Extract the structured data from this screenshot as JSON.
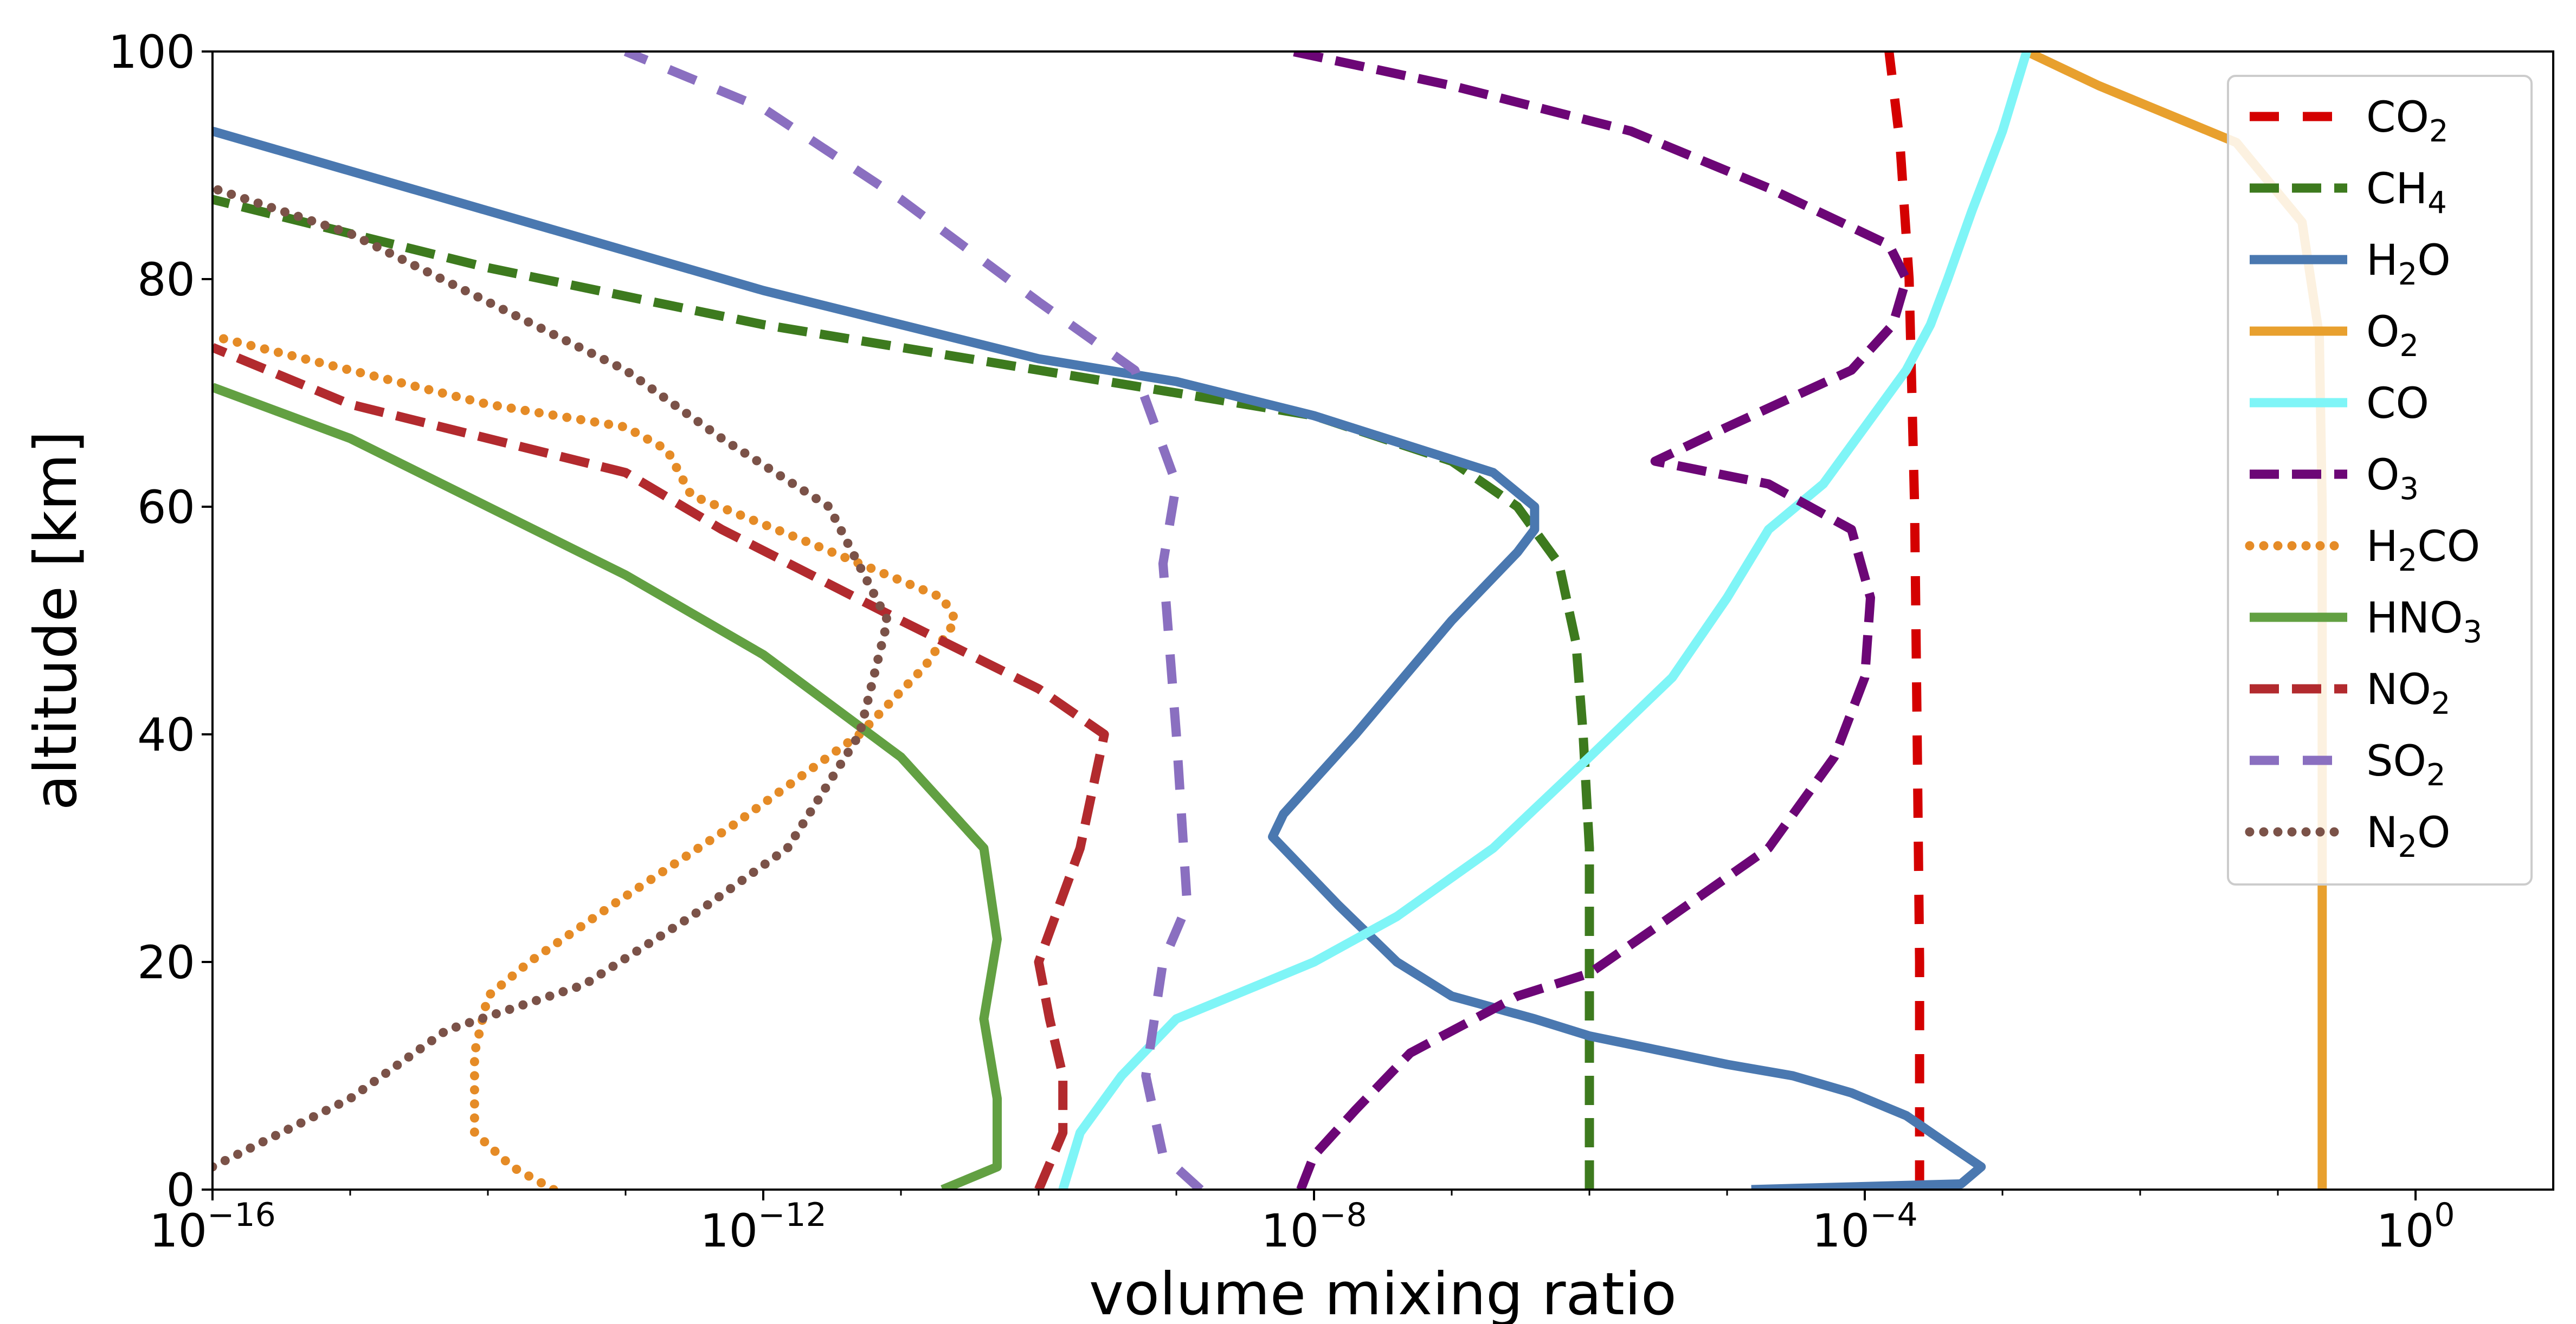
{
  "chart_data": {
    "type": "line",
    "xlabel": "volume mixing ratio",
    "ylabel": "altitude [km]",
    "xscale": "log",
    "xlim": [
      1e-16,
      10
    ],
    "ylim": [
      0,
      100
    ],
    "grid": false,
    "legend_position": "top-right",
    "x_ticks": [
      {
        "value": 1e-16,
        "base": "10",
        "exp": "−16"
      },
      {
        "value": 1e-12,
        "base": "10",
        "exp": "−12"
      },
      {
        "value": 1e-08,
        "base": "10",
        "exp": "−8"
      },
      {
        "value": 0.0001,
        "base": "10",
        "exp": "−4"
      },
      {
        "value": 1,
        "base": "10",
        "exp": "0"
      }
    ],
    "y_ticks": [
      "0",
      "20",
      "40",
      "60",
      "80",
      "100"
    ],
    "series": [
      {
        "name": "CO2",
        "label_main": "CO",
        "label_sub": "2",
        "color": "#d40000",
        "style": "dashdot",
        "points": [
          [
            0.00025,
            0
          ],
          [
            0.00025,
            20
          ],
          [
            0.00024,
            40
          ],
          [
            0.00023,
            60
          ],
          [
            0.00021,
            80
          ],
          [
            0.00018,
            92
          ],
          [
            0.00015,
            100
          ]
        ]
      },
      {
        "name": "CH4",
        "label_main": "CH",
        "label_sub": "4",
        "color": "#3d7a1e",
        "style": "dashed",
        "points": [
          [
            1e-06,
            0
          ],
          [
            1e-06,
            10
          ],
          [
            1e-06,
            20
          ],
          [
            1e-06,
            30
          ],
          [
            9e-07,
            40
          ],
          [
            8e-07,
            48
          ],
          [
            6e-07,
            55
          ],
          [
            3e-07,
            60
          ],
          [
            1e-07,
            64
          ],
          [
            1e-08,
            68
          ],
          [
            1e-09,
            70
          ],
          [
            1e-10,
            72
          ],
          [
            1e-12,
            76
          ],
          [
            1e-14,
            81
          ],
          [
            1e-15,
            84
          ],
          [
            1e-16,
            87
          ]
        ]
      },
      {
        "name": "H2O",
        "label_main": "H",
        "label_sub": "2",
        "label_tail": "O",
        "color": "#4a78b0",
        "style": "solid",
        "points": [
          [
            1.5e-05,
            0
          ],
          [
            0.0005,
            0.5
          ],
          [
            0.0007,
            2
          ],
          [
            0.0004,
            4
          ],
          [
            0.0002,
            6.5
          ],
          [
            8e-05,
            8.5
          ],
          [
            3e-05,
            10
          ],
          [
            1e-05,
            11
          ],
          [
            4e-06,
            12
          ],
          [
            1e-06,
            13.5
          ],
          [
            4e-07,
            15
          ],
          [
            1e-07,
            17
          ],
          [
            4e-08,
            20
          ],
          [
            1.5e-08,
            25
          ],
          [
            5e-09,
            31
          ],
          [
            6e-09,
            33
          ],
          [
            2e-08,
            40
          ],
          [
            1e-07,
            50
          ],
          [
            3e-07,
            56
          ],
          [
            4e-07,
            58
          ],
          [
            4e-07,
            60
          ],
          [
            2e-07,
            63
          ],
          [
            1e-08,
            68
          ],
          [
            1e-09,
            71
          ],
          [
            1e-10,
            73
          ],
          [
            1e-11,
            76
          ],
          [
            1e-12,
            79
          ],
          [
            1e-14,
            86
          ],
          [
            1e-16,
            93
          ]
        ]
      },
      {
        "name": "O2",
        "label_main": "O",
        "label_sub": "2",
        "color": "#e8a02e",
        "style": "solid",
        "points": [
          [
            0.21,
            0
          ],
          [
            0.21,
            40
          ],
          [
            0.21,
            60
          ],
          [
            0.2,
            75
          ],
          [
            0.15,
            85
          ],
          [
            0.05,
            92
          ],
          [
            0.005,
            97
          ],
          [
            0.0015,
            100
          ]
        ]
      },
      {
        "name": "CO",
        "label_main": "CO",
        "label_sub": "",
        "color": "#7ff5f7",
        "style": "solid",
        "points": [
          [
            1.5e-10,
            0
          ],
          [
            2e-10,
            5
          ],
          [
            4e-10,
            10
          ],
          [
            1e-09,
            15
          ],
          [
            4e-09,
            18
          ],
          [
            1e-08,
            20
          ],
          [
            4e-08,
            24
          ],
          [
            2e-07,
            30
          ],
          [
            1e-06,
            38
          ],
          [
            4e-06,
            45
          ],
          [
            1e-05,
            52
          ],
          [
            2e-05,
            58
          ],
          [
            5e-05,
            62
          ],
          [
            0.0001,
            67
          ],
          [
            0.0002,
            72
          ],
          [
            0.0003,
            76
          ],
          [
            0.0004,
            80
          ],
          [
            0.0006,
            86
          ],
          [
            0.001,
            93
          ],
          [
            0.0015,
            100
          ]
        ]
      },
      {
        "name": "O3",
        "label_main": "O",
        "label_sub": "3",
        "color": "#6c0676",
        "style": "dashed",
        "points": [
          [
            8e-09,
            0
          ],
          [
            1e-08,
            3
          ],
          [
            2e-08,
            7
          ],
          [
            5e-08,
            12
          ],
          [
            3e-07,
            17
          ],
          [
            1e-06,
            19
          ],
          [
            3e-06,
            23
          ],
          [
            2e-05,
            30
          ],
          [
            6e-05,
            38
          ],
          [
            0.0001,
            45
          ],
          [
            0.00011,
            52
          ],
          [
            8e-05,
            58
          ],
          [
            2e-05,
            62
          ],
          [
            3e-06,
            64
          ],
          [
            1e-05,
            67
          ],
          [
            8e-05,
            72
          ],
          [
            0.00016,
            76
          ],
          [
            0.0002,
            80
          ],
          [
            0.00015,
            83
          ],
          [
            2e-05,
            88
          ],
          [
            2e-06,
            93
          ],
          [
            1e-07,
            97
          ],
          [
            7e-09,
            100
          ]
        ]
      },
      {
        "name": "H2CO",
        "label_main": "H",
        "label_sub": "2",
        "label_tail": "CO",
        "color": "#e58b26",
        "style": "dotted",
        "points": [
          [
            3e-14,
            0
          ],
          [
            1.5e-14,
            2
          ],
          [
            8e-15,
            5
          ],
          [
            8e-15,
            12
          ],
          [
            1e-14,
            17
          ],
          [
            2e-14,
            20
          ],
          [
            8e-14,
            25
          ],
          [
            6e-13,
            32
          ],
          [
            5e-12,
            40
          ],
          [
            1.5e-11,
            46
          ],
          [
            2.5e-11,
            50
          ],
          [
            2e-11,
            52
          ],
          [
            2e-12,
            57
          ],
          [
            3e-13,
            61
          ],
          [
            2e-13,
            65
          ],
          [
            1e-13,
            67
          ],
          [
            1e-14,
            69
          ],
          [
            1e-15,
            72
          ],
          [
            1e-16,
            75
          ]
        ]
      },
      {
        "name": "HNO3",
        "label_main": "HNO",
        "label_sub": "3",
        "color": "#62a042",
        "style": "solid",
        "points": [
          [
            2e-11,
            0
          ],
          [
            5e-11,
            2
          ],
          [
            5e-11,
            8
          ],
          [
            4e-11,
            15
          ],
          [
            5e-11,
            22
          ],
          [
            4e-11,
            30
          ],
          [
            1e-11,
            38
          ],
          [
            1e-12,
            47
          ],
          [
            1e-13,
            54
          ],
          [
            1e-14,
            60
          ],
          [
            1e-15,
            66
          ],
          [
            1e-16,
            70.5
          ]
        ]
      },
      {
        "name": "NO2",
        "label_main": "NO",
        "label_sub": "2",
        "color": "#b22a2e",
        "style": "dashed",
        "points": [
          [
            1e-10,
            0
          ],
          [
            1.5e-10,
            5
          ],
          [
            1.5e-10,
            10
          ],
          [
            1.2e-10,
            15
          ],
          [
            1e-10,
            20
          ],
          [
            2e-10,
            30
          ],
          [
            3e-10,
            40
          ],
          [
            1e-10,
            44
          ],
          [
            1e-11,
            50
          ],
          [
            5e-13,
            58
          ],
          [
            1e-13,
            63
          ],
          [
            1e-14,
            66
          ],
          [
            1e-15,
            69
          ],
          [
            1e-16,
            74
          ]
        ]
      },
      {
        "name": "SO2",
        "label_main": "SO",
        "label_sub": "2",
        "color": "#8a6fc0",
        "style": "dashdot",
        "points": [
          [
            1.5e-09,
            0
          ],
          [
            8e-10,
            3
          ],
          [
            6e-10,
            10
          ],
          [
            8e-10,
            20
          ],
          [
            1.2e-09,
            25
          ],
          [
            1e-09,
            40
          ],
          [
            8e-10,
            55
          ],
          [
            1e-09,
            62
          ],
          [
            5e-10,
            72
          ],
          [
            1e-10,
            78
          ],
          [
            1e-11,
            87
          ],
          [
            1e-12,
            95
          ],
          [
            1e-13,
            100
          ]
        ]
      },
      {
        "name": "N2O",
        "label_main": "N",
        "label_sub": "2",
        "label_tail": "O",
        "color": "#7b5248",
        "style": "dotted",
        "points": [
          [
            1e-16,
            2
          ],
          [
            1e-15,
            8
          ],
          [
            5e-15,
            14
          ],
          [
            5e-14,
            18
          ],
          [
            3e-13,
            24
          ],
          [
            1.5e-12,
            30
          ],
          [
            5e-12,
            40
          ],
          [
            8e-12,
            50
          ],
          [
            3e-12,
            60
          ],
          [
            5e-13,
            66
          ],
          [
            1e-13,
            72
          ],
          [
            1e-14,
            78
          ],
          [
            1e-15,
            84
          ],
          [
            1e-16,
            88
          ]
        ]
      }
    ]
  }
}
